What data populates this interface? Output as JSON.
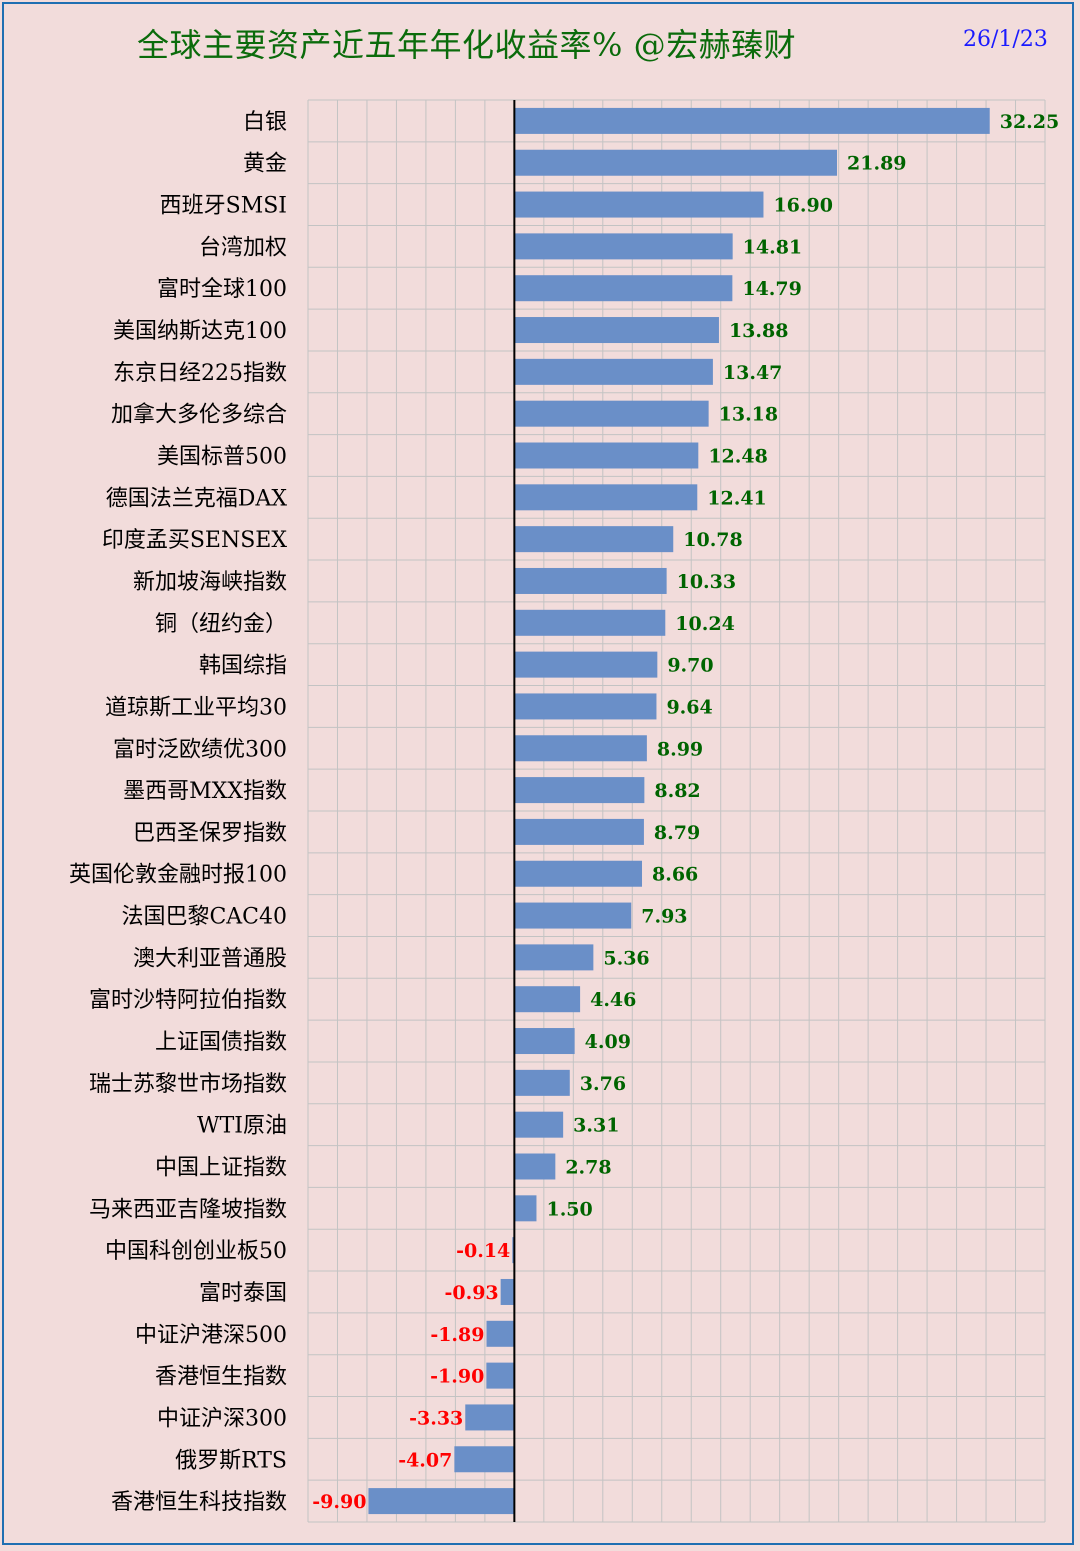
{
  "header": {
    "title": "全球主要资产近五年年化收益率% @宏赫臻财",
    "date": "26/1/23"
  },
  "colors": {
    "background": "#f2dcdb",
    "bar": "#6a8fc8",
    "grid": "#c3c3c3",
    "positive_label": "#006400",
    "negative_label": "#ff0000",
    "title": "#0b6b0b",
    "date": "#1a1aff",
    "border": "#1f6fb2"
  },
  "chart_data": {
    "type": "bar",
    "orientation": "horizontal",
    "title": "全球主要资产近五年年化收益率% @宏赫臻财",
    "xlabel": "",
    "ylabel": "",
    "xlim": [
      -14,
      36
    ],
    "grid": true,
    "categories": [
      "白银",
      "黄金",
      "西班牙SMSI",
      "台湾加权",
      "富时全球100",
      "美国纳斯达克100",
      "东京日经225指数",
      "加拿大多伦多综合",
      "美国标普500",
      "德国法兰克福DAX",
      "印度孟买SENSEX",
      "新加坡海峡指数",
      "铜（纽约金）",
      "韩国综指",
      "道琼斯工业平均30",
      "富时泛欧绩优300",
      "墨西哥MXX指数",
      "巴西圣保罗指数",
      "英国伦敦金融时报100",
      "法国巴黎CAC40",
      "澳大利亚普通股",
      "富时沙特阿拉伯指数",
      "上证国债指数",
      "瑞士苏黎世市场指数",
      "WTI原油",
      "中国上证指数",
      "马来西亚吉隆坡指数",
      "中国科创创业板50",
      "富时泰国",
      "中证沪港深500",
      "香港恒生指数",
      "中证沪深300",
      "俄罗斯RTS",
      "香港恒生科技指数"
    ],
    "values": [
      32.25,
      21.89,
      16.9,
      14.81,
      14.79,
      13.88,
      13.47,
      13.18,
      12.48,
      12.41,
      10.78,
      10.33,
      10.24,
      9.7,
      9.64,
      8.99,
      8.82,
      8.79,
      8.66,
      7.93,
      5.36,
      4.46,
      4.09,
      3.76,
      3.31,
      2.78,
      1.5,
      -0.14,
      -0.93,
      -1.89,
      -1.9,
      -3.33,
      -4.07,
      -9.9
    ],
    "value_labels": [
      "32.25",
      "21.89",
      "16.90",
      "14.81",
      "14.79",
      "13.88",
      "13.47",
      "13.18",
      "12.48",
      "12.41",
      "10.78",
      "10.33",
      "10.24",
      "9.70",
      "9.64",
      "8.99",
      "8.82",
      "8.79",
      "8.66",
      "7.93",
      "5.36",
      "4.46",
      "4.09",
      "3.76",
      "3.31",
      "2.78",
      "1.50",
      "-0.14",
      "-0.93",
      "-1.89",
      "-1.90",
      "-3.33",
      "-4.07",
      "-9.90"
    ]
  }
}
